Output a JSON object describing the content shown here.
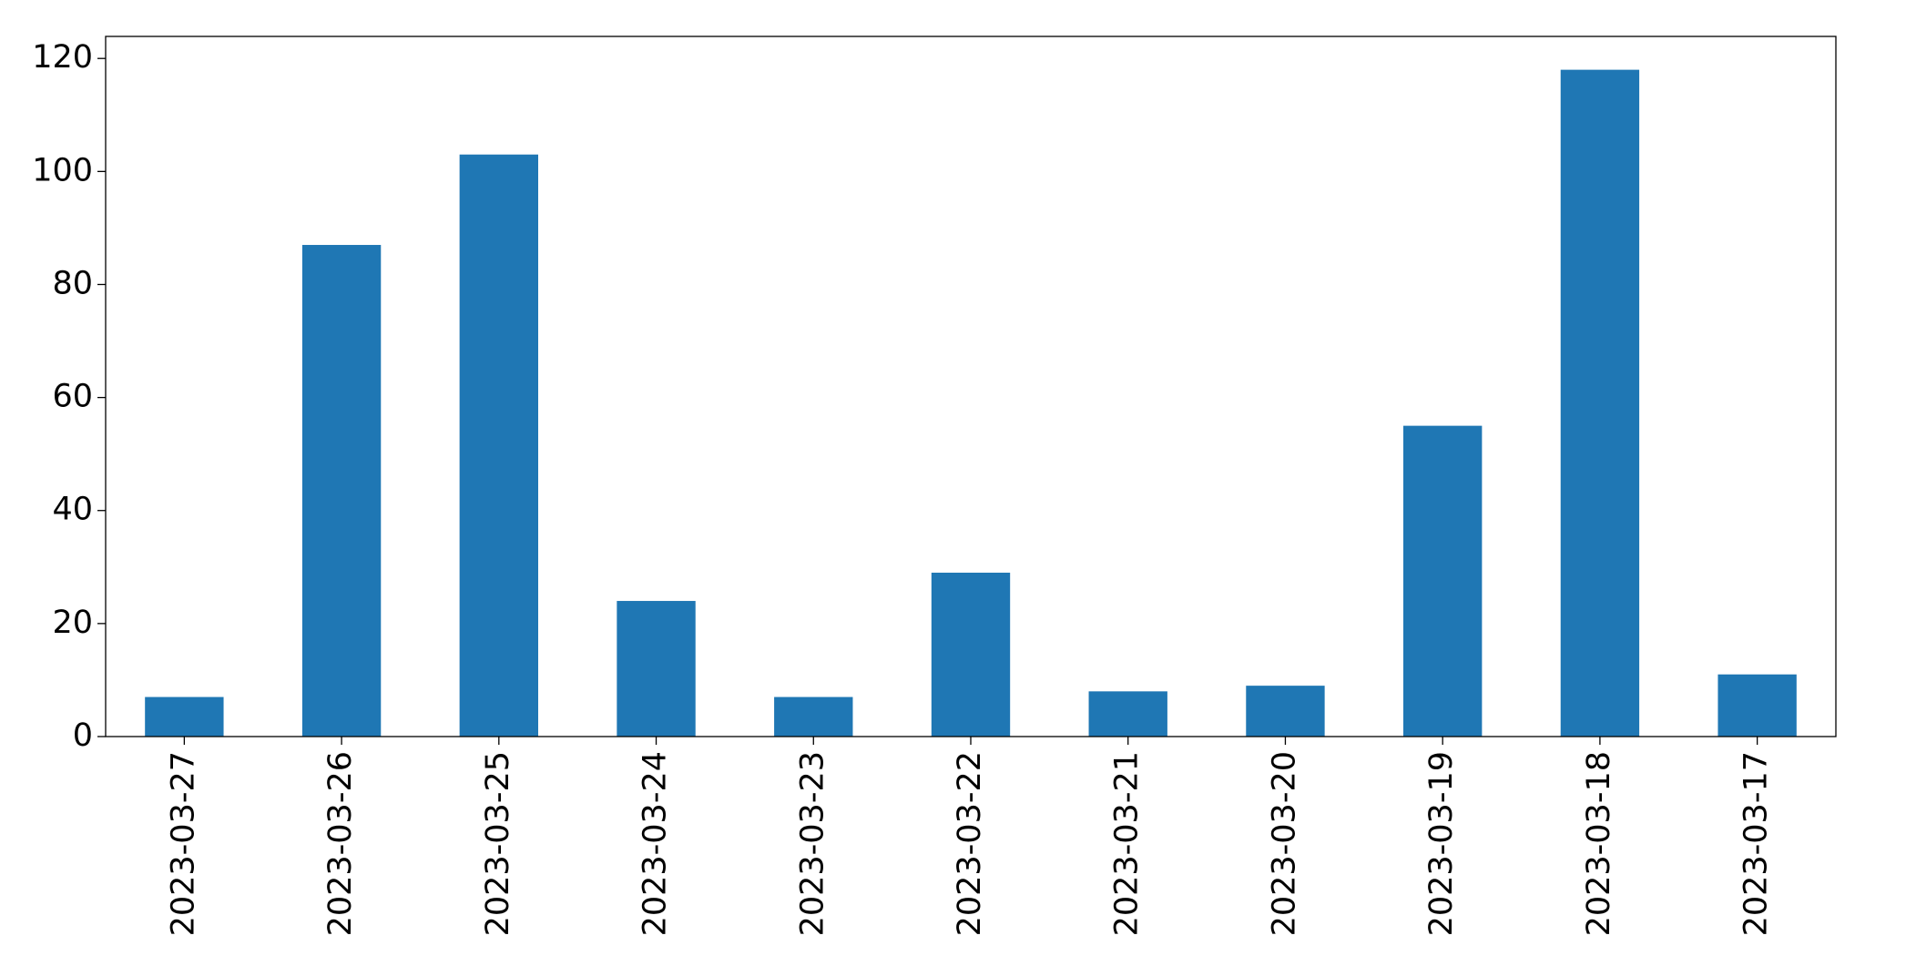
{
  "chart_data": {
    "type": "bar",
    "categories": [
      "2023-03-27",
      "2023-03-26",
      "2023-03-25",
      "2023-03-24",
      "2023-03-23",
      "2023-03-22",
      "2023-03-21",
      "2023-03-20",
      "2023-03-19",
      "2023-03-18",
      "2023-03-17"
    ],
    "values": [
      7,
      87,
      103,
      24,
      7,
      29,
      8,
      9,
      55,
      118,
      11
    ],
    "color": "#1f77b4",
    "ylim": [
      0,
      123.9
    ],
    "yticks": [
      0,
      20,
      40,
      60,
      80,
      100,
      120
    ],
    "grid": false
  }
}
